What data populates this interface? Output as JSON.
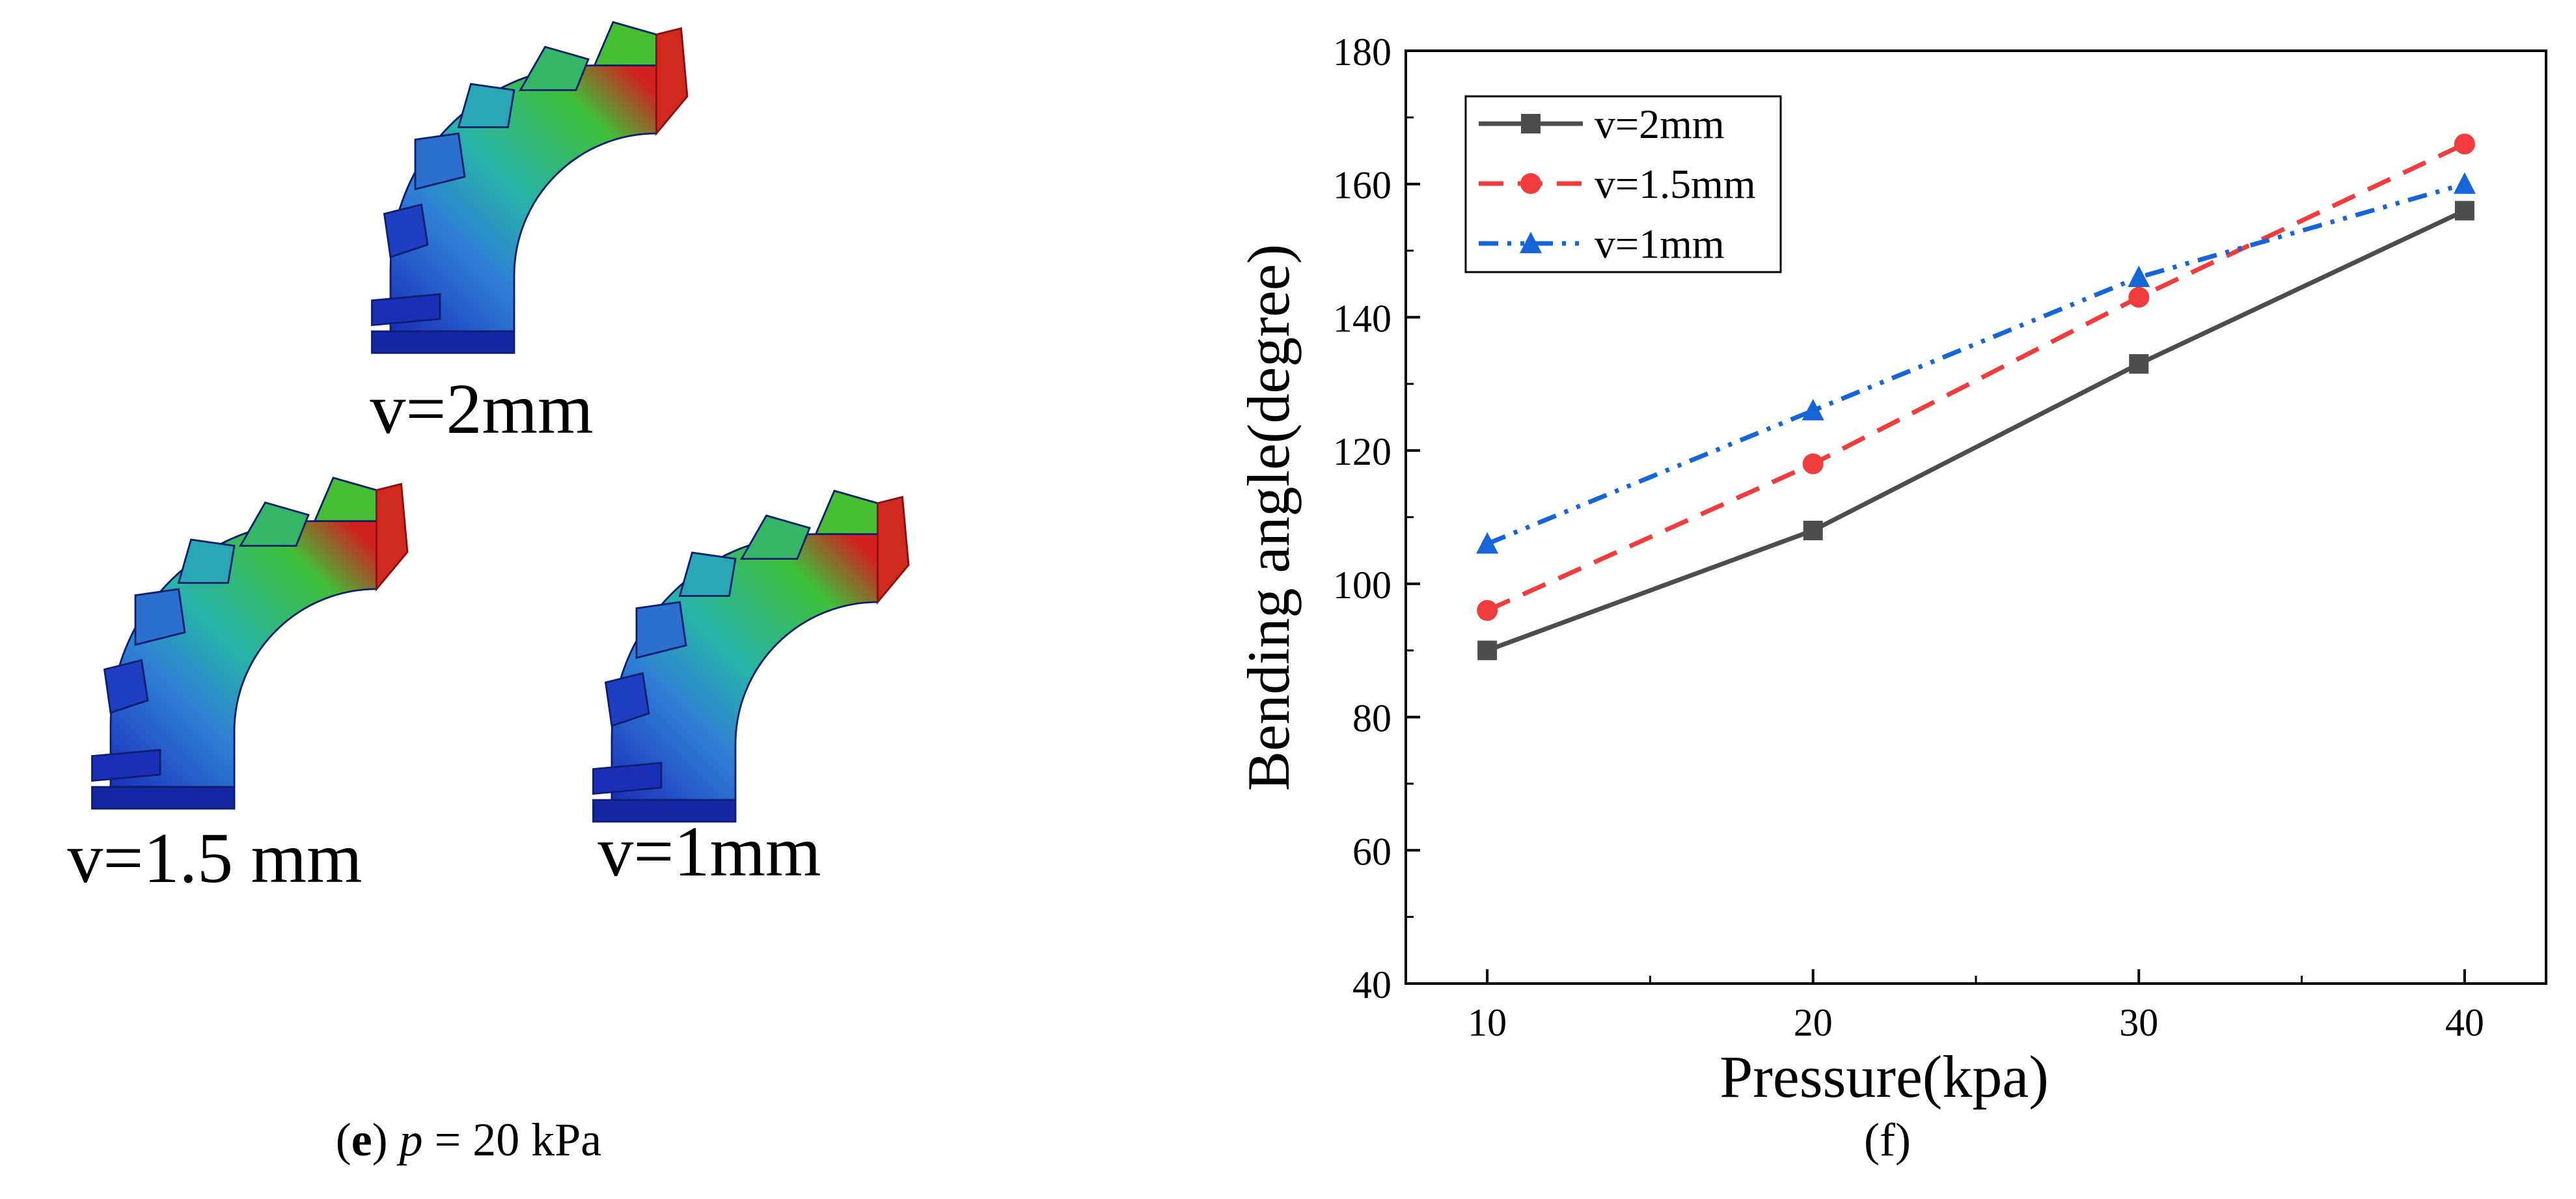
{
  "panel_e": {
    "caption": {
      "letter": "e",
      "open": "(",
      "close": ")",
      "rest": " = 20 kPa",
      "var": "p"
    },
    "models": [
      {
        "label": "v=2mm"
      },
      {
        "label": "v=1.5 mm"
      },
      {
        "label": "v=1mm"
      }
    ],
    "colors": {
      "low": "#1a2fb8",
      "mid1": "#2f7fd6",
      "mid2": "#27b3a8",
      "mid3": "#3fbf3a",
      "high": "#d21f1f"
    }
  },
  "panel_f": {
    "caption": "(f)"
  },
  "chart_data": {
    "type": "line",
    "xlabel": "Pressure(kpa)",
    "ylabel": "Bending angle(degree)",
    "x": [
      10,
      20,
      30,
      40
    ],
    "xlim": [
      7.5,
      42.5
    ],
    "ylim": [
      40,
      180
    ],
    "xticks": [
      10,
      20,
      30,
      40
    ],
    "yticks": [
      40,
      60,
      80,
      100,
      120,
      140,
      160,
      180
    ],
    "legend_position": "top-left",
    "series": [
      {
        "name": "v=2mm",
        "values": [
          90,
          108,
          133,
          156
        ],
        "color": "#4d4d4d",
        "marker": "square",
        "dash": "solid"
      },
      {
        "name": "v=1.5mm",
        "values": [
          96,
          118,
          143,
          166
        ],
        "color": "#f03c3c",
        "marker": "circle",
        "dash": "dash"
      },
      {
        "name": "v=1mm",
        "values": [
          106,
          126,
          146,
          160
        ],
        "color": "#1565d8",
        "marker": "triangle",
        "dash": "dashdotdot"
      }
    ]
  }
}
